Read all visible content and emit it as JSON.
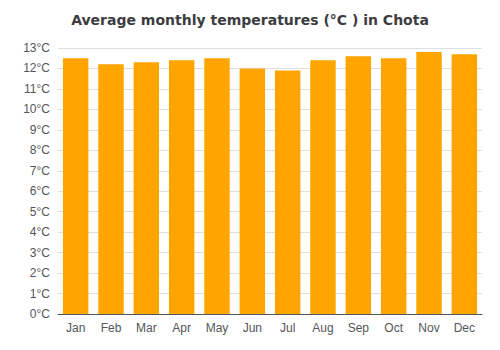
{
  "chart_data": {
    "type": "bar",
    "title": "Average monthly temperatures (°C ) in Chota",
    "categories": [
      "Jan",
      "Feb",
      "Mar",
      "Apr",
      "May",
      "Jun",
      "Jul",
      "Aug",
      "Sep",
      "Oct",
      "Nov",
      "Dec"
    ],
    "values": [
      12.5,
      12.2,
      12.3,
      12.4,
      12.5,
      12.0,
      11.9,
      12.4,
      12.6,
      12.5,
      12.8,
      12.7
    ],
    "color": "#FFA500",
    "ylim": [
      0,
      13
    ],
    "yticks": [
      {
        "value": 0,
        "label": "0°C"
      },
      {
        "value": 1,
        "label": "1°C"
      },
      {
        "value": 2,
        "label": "2°C"
      },
      {
        "value": 3,
        "label": "3°C"
      },
      {
        "value": 4,
        "label": "4°C"
      },
      {
        "value": 5,
        "label": "5°C"
      },
      {
        "value": 6,
        "label": "6°C"
      },
      {
        "value": 7,
        "label": "7°C"
      },
      {
        "value": 8,
        "label": "8°C"
      },
      {
        "value": 9,
        "label": "9°C"
      },
      {
        "value": 10,
        "label": "10°C"
      },
      {
        "value": 11,
        "label": "11°C"
      },
      {
        "value": 12,
        "label": "12°C"
      },
      {
        "value": 13,
        "label": "13°C"
      }
    ],
    "grid": true
  }
}
